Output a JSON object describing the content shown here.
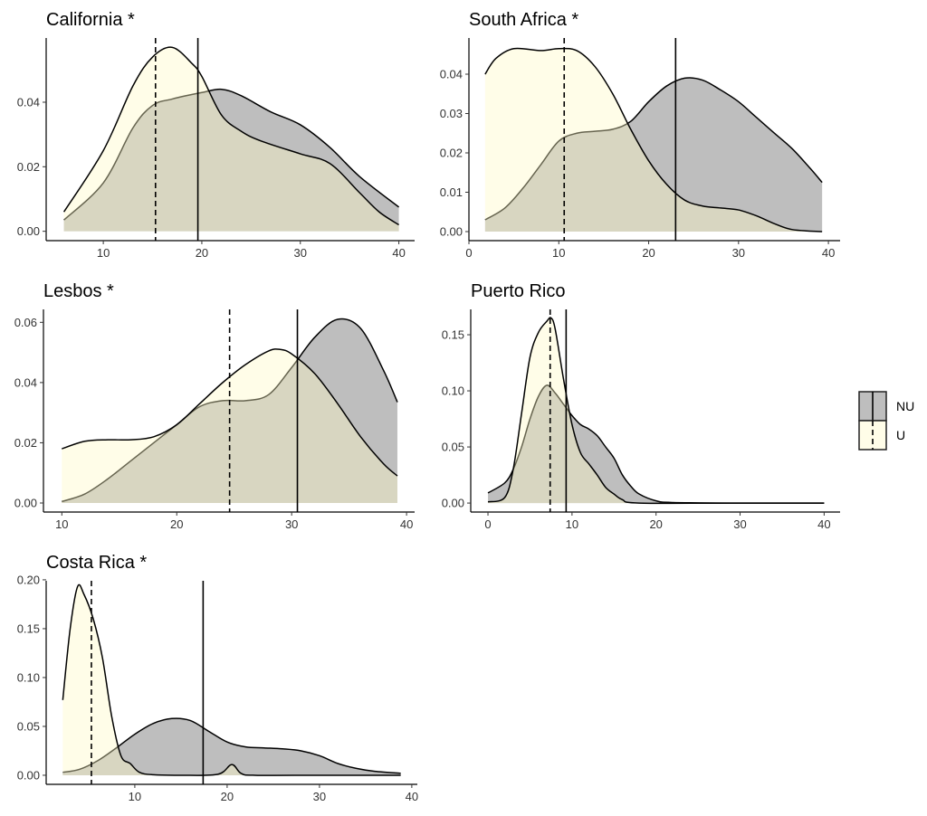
{
  "chart_data": {
    "type": "area",
    "subtype": "density",
    "colors": {
      "NU": "#bebebe",
      "U": "#fffac5",
      "U_alpha": 0.4,
      "line": "#000000"
    },
    "legend": {
      "placement": "right",
      "entries": [
        {
          "name": "NU",
          "line": "solid"
        },
        {
          "name": "U",
          "line": "dashed"
        }
      ]
    },
    "grid": false,
    "panels": [
      {
        "title": "California *",
        "xlim": [
          4.2,
          41.6
        ],
        "ylim": [
          -0.0029,
          0.0599
        ],
        "xticks": [
          10,
          20,
          30,
          40
        ],
        "yticks": [
          0.0,
          0.02,
          0.04
        ],
        "ytick_labels": [
          "0.00",
          "0.02",
          "0.04"
        ],
        "means": {
          "NU": 19.6,
          "U": 15.3
        },
        "series": [
          {
            "name": "NU",
            "x": [
              6,
              10,
              13,
              15,
              17,
              20,
              22,
              24,
              27,
              30,
              33,
              36,
              40
            ],
            "y": [
              0.0035,
              0.015,
              0.032,
              0.039,
              0.041,
              0.043,
              0.044,
              0.042,
              0.037,
              0.033,
              0.026,
              0.017,
              0.0075
            ]
          },
          {
            "name": "U",
            "x": [
              6,
              10,
              13,
              15,
              17,
              19,
              20,
              22,
              24,
              26,
              30,
              33,
              36,
              38,
              40
            ],
            "y": [
              0.006,
              0.025,
              0.045,
              0.054,
              0.057,
              0.052,
              0.048,
              0.036,
              0.031,
              0.028,
              0.024,
              0.021,
              0.012,
              0.006,
              0.002
            ]
          }
        ]
      },
      {
        "title": "South Africa *",
        "xlim": [
          0,
          41.3
        ],
        "ylim": [
          -0.0023,
          0.0492
        ],
        "xticks": [
          0,
          10,
          20,
          30,
          40
        ],
        "yticks": [
          0.0,
          0.01,
          0.02,
          0.03,
          0.04
        ],
        "ytick_labels": [
          "0.00",
          "0.01",
          "0.02",
          "0.03",
          "0.04"
        ],
        "means": {
          "NU": 23.0,
          "U": 10.6
        },
        "series": [
          {
            "name": "NU",
            "x": [
              1.8,
              4,
              6,
              8,
              10,
              12,
              14,
              16,
              18,
              20,
              22,
              24,
              26,
              28,
              30,
              32,
              34,
              36,
              38,
              39.3
            ],
            "y": [
              0.003,
              0.006,
              0.011,
              0.017,
              0.023,
              0.025,
              0.0255,
              0.026,
              0.028,
              0.033,
              0.037,
              0.039,
              0.0385,
              0.036,
              0.033,
              0.029,
              0.025,
              0.021,
              0.016,
              0.0125
            ]
          },
          {
            "name": "U",
            "x": [
              1.8,
              3,
              5,
              8,
              10,
              12,
              14,
              16,
              18,
              20,
              22,
              24,
              26,
              28,
              30,
              32,
              34,
              36,
              39.3
            ],
            "y": [
              0.04,
              0.044,
              0.0465,
              0.046,
              0.0465,
              0.046,
              0.042,
              0.035,
              0.026,
              0.018,
              0.012,
              0.008,
              0.0065,
              0.006,
              0.0055,
              0.004,
              0.002,
              0.0005,
              0.0
            ]
          }
        ]
      },
      {
        "title": "Lesbos *",
        "xlim": [
          8.4,
          40.7
        ],
        "ylim": [
          -0.003,
          0.0643
        ],
        "xticks": [
          10,
          20,
          30,
          40
        ],
        "yticks": [
          0.0,
          0.02,
          0.04,
          0.06
        ],
        "ytick_labels": [
          "0.00",
          "0.02",
          "0.04",
          "0.06"
        ],
        "means": {
          "NU": 30.5,
          "U": 24.6
        },
        "series": [
          {
            "name": "NU",
            "x": [
              10,
              12,
              14,
              16,
              18,
              20,
              22,
              24,
              26,
              28,
              30,
              32,
              34,
              36,
              38,
              39.2
            ],
            "y": [
              0.0005,
              0.003,
              0.008,
              0.014,
              0.02,
              0.026,
              0.032,
              0.034,
              0.034,
              0.036,
              0.045,
              0.055,
              0.061,
              0.058,
              0.044,
              0.0335
            ]
          },
          {
            "name": "U",
            "x": [
              10,
              12,
              14,
              16,
              18,
              20,
              22,
              24,
              26,
              28,
              29,
              30,
              32,
              34,
              36,
              38,
              39.2
            ],
            "y": [
              0.018,
              0.0205,
              0.021,
              0.021,
              0.022,
              0.026,
              0.033,
              0.04,
              0.046,
              0.0505,
              0.051,
              0.0495,
              0.043,
              0.033,
              0.022,
              0.013,
              0.009
            ]
          }
        ]
      },
      {
        "title": "Puerto Rico",
        "xlim": [
          -2.05,
          41.9
        ],
        "ylim": [
          -0.008,
          0.1726
        ],
        "xticks": [
          0,
          10,
          20,
          30,
          40
        ],
        "yticks": [
          0.0,
          0.05,
          0.1,
          0.15
        ],
        "ytick_labels": [
          "0.00",
          "0.05",
          "0.10",
          "0.15"
        ],
        "means": {
          "NU": 9.3,
          "U": 7.4
        },
        "series": [
          {
            "name": "NU",
            "x": [
              0,
              2,
              3,
              4,
              5,
              6,
              7,
              8,
              9,
              10,
              11,
              12,
              13,
              14,
              15,
              16,
              17,
              18,
              20,
              22,
              30,
              40
            ],
            "y": [
              0.009,
              0.018,
              0.03,
              0.05,
              0.075,
              0.095,
              0.105,
              0.098,
              0.088,
              0.078,
              0.07,
              0.066,
              0.06,
              0.05,
              0.04,
              0.025,
              0.015,
              0.008,
              0.002,
              0.0005,
              0,
              0
            ]
          },
          {
            "name": "U",
            "x": [
              0,
              2,
              3,
              4,
              5,
              6,
              7,
              7.5,
              8,
              9,
              10,
              11,
              12,
              13,
              14,
              15,
              16,
              18,
              30,
              40
            ],
            "y": [
              0.001,
              0.005,
              0.03,
              0.08,
              0.13,
              0.152,
              0.162,
              0.165,
              0.155,
              0.11,
              0.07,
              0.045,
              0.035,
              0.025,
              0.014,
              0.008,
              0.003,
              0,
              0,
              0
            ]
          }
        ]
      },
      {
        "title": "Costa Rica *",
        "xlim": [
          0.4,
          40.6
        ],
        "ylim": [
          -0.0093,
          0.199
        ],
        "xticks": [
          10,
          20,
          30,
          40
        ],
        "yticks": [
          0.0,
          0.05,
          0.1,
          0.15,
          0.2
        ],
        "ytick_labels": [
          "0.00",
          "0.05",
          "0.10",
          "0.15",
          "0.20"
        ],
        "means": {
          "NU": 17.4,
          "U": 5.3
        },
        "series": [
          {
            "name": "NU",
            "x": [
              2.2,
              4,
              6,
              8,
              10,
              12,
              14,
              16,
              18,
              20,
              22,
              24,
              26,
              28,
              30,
              32,
              34,
              36,
              38.8
            ],
            "y": [
              0.003,
              0.006,
              0.015,
              0.028,
              0.042,
              0.053,
              0.058,
              0.056,
              0.045,
              0.034,
              0.029,
              0.028,
              0.027,
              0.025,
              0.02,
              0.012,
              0.007,
              0.004,
              0.002
            ]
          },
          {
            "name": "U",
            "x": [
              2.2,
              3,
              3.8,
              4.5,
              5.5,
              6.5,
              7.5,
              8.5,
              9.5,
              10.5,
              12,
              15,
              19,
              20.5,
              21.5,
              23,
              30,
              38.8
            ],
            "y": [
              0.077,
              0.15,
              0.193,
              0.185,
              0.16,
              0.12,
              0.06,
              0.02,
              0.012,
              0.003,
              0.0005,
              0,
              0.001,
              0.011,
              0.002,
              0,
              0,
              0
            ]
          }
        ]
      }
    ]
  }
}
